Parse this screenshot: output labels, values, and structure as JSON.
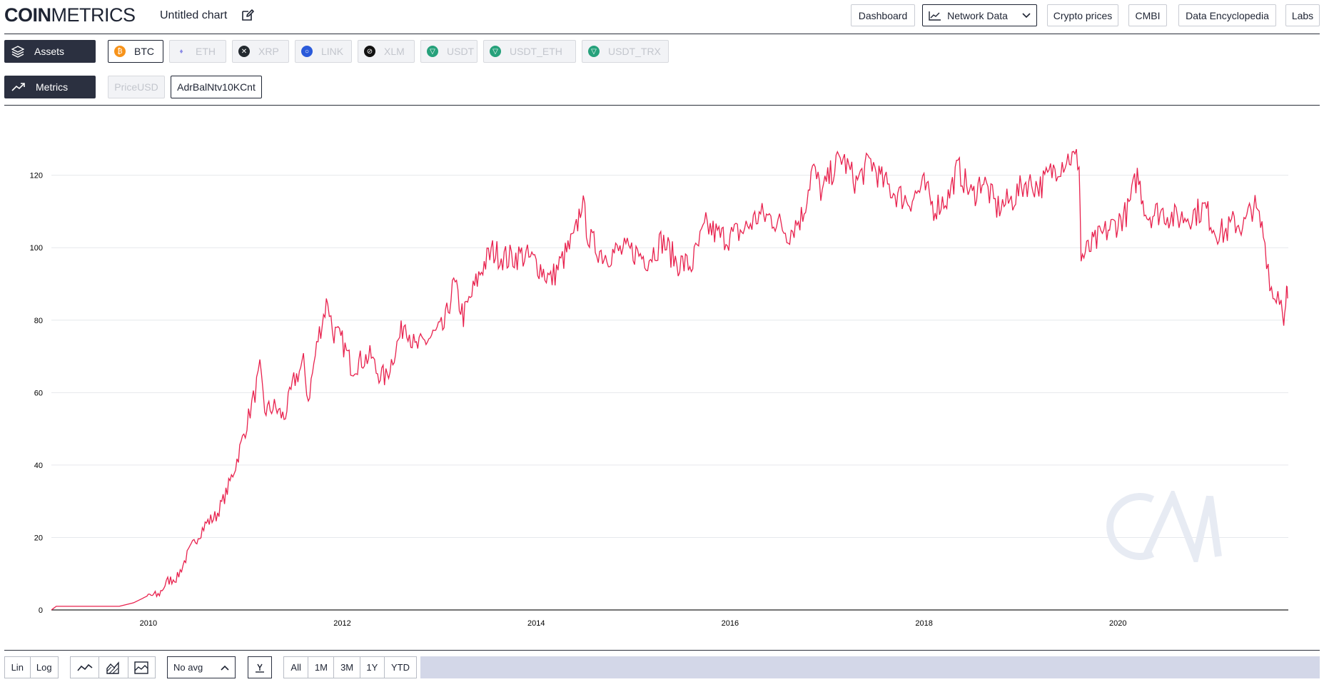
{
  "header": {
    "logo_bold": "COIN",
    "logo_light": "METRICS",
    "chart_title": "Untitled chart",
    "nav": [
      "Dashboard",
      "Network Data",
      "Crypto prices",
      "CMBI",
      "Data Encyclopedia",
      "Labs"
    ]
  },
  "assets": {
    "label": "Assets",
    "items": [
      {
        "name": "BTC",
        "active": true,
        "color": "#f7931a",
        "icon": "bitcoin-icon"
      },
      {
        "name": "ETH",
        "active": false,
        "color": "#8c8ce6",
        "icon": "ethereum-icon"
      },
      {
        "name": "XRP",
        "active": false,
        "color": "#23292f",
        "icon": "xrp-icon"
      },
      {
        "name": "LINK",
        "active": false,
        "color": "#2a5ada",
        "icon": "chainlink-icon"
      },
      {
        "name": "XLM",
        "active": false,
        "color": "#111111",
        "icon": "stellar-icon"
      },
      {
        "name": "USDT",
        "active": false,
        "color": "#26a17b",
        "icon": "tether-icon"
      },
      {
        "name": "USDT_ETH",
        "active": false,
        "color": "#26a17b",
        "icon": "tether-icon"
      },
      {
        "name": "USDT_TRX",
        "active": false,
        "color": "#26a17b",
        "icon": "tether-icon"
      }
    ]
  },
  "metrics": {
    "label": "Metrics",
    "items": [
      {
        "name": "PriceUSD",
        "active": false
      },
      {
        "name": "AdrBalNtv10KCnt",
        "active": true
      }
    ]
  },
  "controls": {
    "scale": [
      "Lin",
      "Log"
    ],
    "avg": "No avg",
    "ranges": [
      "All",
      "1M",
      "3M",
      "1Y",
      "YTD"
    ]
  },
  "chart_data": {
    "type": "line",
    "title": "",
    "xlabel": "",
    "ylabel": "",
    "line_color": "#e8224e",
    "ylim": [
      0,
      128
    ],
    "xlim": [
      2009.0,
      2021.75
    ],
    "yticks": [
      0,
      20,
      40,
      60,
      80,
      100,
      120
    ],
    "xticks": [
      2010,
      2012,
      2014,
      2016,
      2018,
      2020
    ],
    "series": [
      {
        "values": [
          [
            2009.0,
            0
          ],
          [
            2009.05,
            1
          ],
          [
            2009.4,
            1
          ],
          [
            2009.7,
            1
          ],
          [
            2009.85,
            2
          ],
          [
            2010.0,
            4
          ],
          [
            2010.1,
            4
          ],
          [
            2010.2,
            8
          ],
          [
            2010.3,
            9
          ],
          [
            2010.4,
            15
          ],
          [
            2010.5,
            20
          ],
          [
            2010.6,
            24
          ],
          [
            2010.7,
            26
          ],
          [
            2010.8,
            32
          ],
          [
            2010.9,
            40
          ],
          [
            2011.0,
            50
          ],
          [
            2011.05,
            55
          ],
          [
            2011.1,
            60
          ],
          [
            2011.15,
            66
          ],
          [
            2011.2,
            55
          ],
          [
            2011.3,
            56
          ],
          [
            2011.4,
            53
          ],
          [
            2011.5,
            63
          ],
          [
            2011.6,
            68
          ],
          [
            2011.65,
            58
          ],
          [
            2011.75,
            75
          ],
          [
            2011.85,
            86
          ],
          [
            2011.9,
            77
          ],
          [
            2012.0,
            74
          ],
          [
            2012.1,
            67
          ],
          [
            2012.2,
            69
          ],
          [
            2012.3,
            70
          ],
          [
            2012.35,
            66
          ],
          [
            2012.45,
            64
          ],
          [
            2012.55,
            72
          ],
          [
            2012.65,
            80
          ],
          [
            2012.75,
            72
          ],
          [
            2012.85,
            74
          ],
          [
            2012.95,
            76
          ],
          [
            2013.05,
            78
          ],
          [
            2013.15,
            90
          ],
          [
            2013.25,
            81
          ],
          [
            2013.35,
            88
          ],
          [
            2013.45,
            95
          ],
          [
            2013.55,
            99
          ],
          [
            2013.7,
            97
          ],
          [
            2013.85,
            98
          ],
          [
            2014.0,
            96
          ],
          [
            2014.15,
            91
          ],
          [
            2014.3,
            98
          ],
          [
            2014.4,
            103
          ],
          [
            2014.47,
            113
          ],
          [
            2014.55,
            102
          ],
          [
            2014.7,
            98
          ],
          [
            2014.85,
            99
          ],
          [
            2015.0,
            99
          ],
          [
            2015.15,
            97
          ],
          [
            2015.3,
            102
          ],
          [
            2015.45,
            96
          ],
          [
            2015.6,
            95
          ],
          [
            2015.75,
            106
          ],
          [
            2015.9,
            103
          ],
          [
            2016.0,
            103
          ],
          [
            2016.15,
            105
          ],
          [
            2016.3,
            109
          ],
          [
            2016.45,
            108
          ],
          [
            2016.6,
            104
          ],
          [
            2016.75,
            109
          ],
          [
            2016.85,
            122
          ],
          [
            2016.95,
            115
          ],
          [
            2017.05,
            121
          ],
          [
            2017.15,
            125
          ],
          [
            2017.3,
            118
          ],
          [
            2017.45,
            124
          ],
          [
            2017.55,
            119
          ],
          [
            2017.7,
            115
          ],
          [
            2017.85,
            113
          ],
          [
            2018.0,
            117
          ],
          [
            2018.1,
            111
          ],
          [
            2018.25,
            114
          ],
          [
            2018.35,
            122
          ],
          [
            2018.5,
            114
          ],
          [
            2018.6,
            119
          ],
          [
            2018.75,
            111
          ],
          [
            2018.9,
            113
          ],
          [
            2019.05,
            118
          ],
          [
            2019.2,
            117
          ],
          [
            2019.35,
            122
          ],
          [
            2019.5,
            125
          ],
          [
            2019.6,
            124
          ],
          [
            2019.62,
            97
          ],
          [
            2019.75,
            101
          ],
          [
            2019.9,
            105
          ],
          [
            2020.0,
            107
          ],
          [
            2020.1,
            110
          ],
          [
            2020.2,
            120
          ],
          [
            2020.3,
            109
          ],
          [
            2020.45,
            110
          ],
          [
            2020.6,
            108
          ],
          [
            2020.75,
            109
          ],
          [
            2020.9,
            111
          ],
          [
            2021.0,
            105
          ],
          [
            2021.1,
            104
          ],
          [
            2021.2,
            107
          ],
          [
            2021.3,
            106
          ],
          [
            2021.4,
            112
          ],
          [
            2021.5,
            104
          ],
          [
            2021.55,
            95
          ],
          [
            2021.6,
            86
          ],
          [
            2021.65,
            88
          ],
          [
            2021.7,
            84
          ],
          [
            2021.72,
            80
          ],
          [
            2021.74,
            87
          ],
          [
            2021.75,
            86
          ]
        ]
      }
    ]
  }
}
